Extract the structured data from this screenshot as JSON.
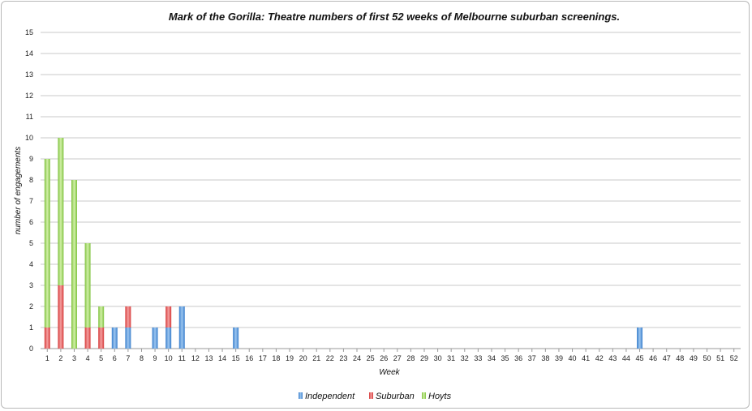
{
  "chart_data": {
    "type": "bar",
    "stacked": true,
    "title": "Mark of the Gorilla: Theatre numbers of first 52 weeks of Melbourne suburban screenings.",
    "xlabel": "Week",
    "ylabel": "number of engagements",
    "ylim": [
      0,
      15
    ],
    "yticks": [
      "0",
      "1",
      "2",
      "3",
      "4",
      "5",
      "6",
      "7",
      "8",
      "9",
      "10",
      "11",
      "12",
      "13",
      "14",
      "15"
    ],
    "categories": [
      "1",
      "2",
      "3",
      "4",
      "5",
      "6",
      "7",
      "8",
      "9",
      "10",
      "11",
      "12",
      "13",
      "14",
      "15",
      "16",
      "17",
      "18",
      "19",
      "20",
      "21",
      "22",
      "23",
      "24",
      "25",
      "26",
      "27",
      "28",
      "29",
      "30",
      "31",
      "32",
      "33",
      "34",
      "35",
      "36",
      "37",
      "38",
      "39",
      "40",
      "41",
      "42",
      "43",
      "44",
      "45",
      "46",
      "47",
      "48",
      "49",
      "50",
      "51",
      "52"
    ],
    "grid": true,
    "legend_position": "bottom",
    "series": [
      {
        "name": "Independent",
        "color": "#4a90d9",
        "values": [
          0,
          0,
          0,
          0,
          0,
          1,
          1,
          0,
          1,
          1,
          2,
          0,
          0,
          0,
          1,
          0,
          0,
          0,
          0,
          0,
          0,
          0,
          0,
          0,
          0,
          0,
          0,
          0,
          0,
          0,
          0,
          0,
          0,
          0,
          0,
          0,
          0,
          0,
          0,
          0,
          0,
          0,
          0,
          0,
          1,
          0,
          0,
          0,
          0,
          0,
          0,
          0
        ]
      },
      {
        "name": "Suburban",
        "color": "#e04848",
        "values": [
          1,
          3,
          0,
          1,
          1,
          0,
          1,
          0,
          0,
          1,
          0,
          0,
          0,
          0,
          0,
          0,
          0,
          0,
          0,
          0,
          0,
          0,
          0,
          0,
          0,
          0,
          0,
          0,
          0,
          0,
          0,
          0,
          0,
          0,
          0,
          0,
          0,
          0,
          0,
          0,
          0,
          0,
          0,
          0,
          0,
          0,
          0,
          0,
          0,
          0,
          0,
          0
        ]
      },
      {
        "name": "Hoyts",
        "color": "#8fd14f",
        "values": [
          8,
          7,
          8,
          4,
          1,
          0,
          0,
          0,
          0,
          0,
          0,
          0,
          0,
          0,
          0,
          0,
          0,
          0,
          0,
          0,
          0,
          0,
          0,
          0,
          0,
          0,
          0,
          0,
          0,
          0,
          0,
          0,
          0,
          0,
          0,
          0,
          0,
          0,
          0,
          0,
          0,
          0,
          0,
          0,
          0,
          0,
          0,
          0,
          0,
          0,
          0,
          0
        ]
      }
    ]
  }
}
